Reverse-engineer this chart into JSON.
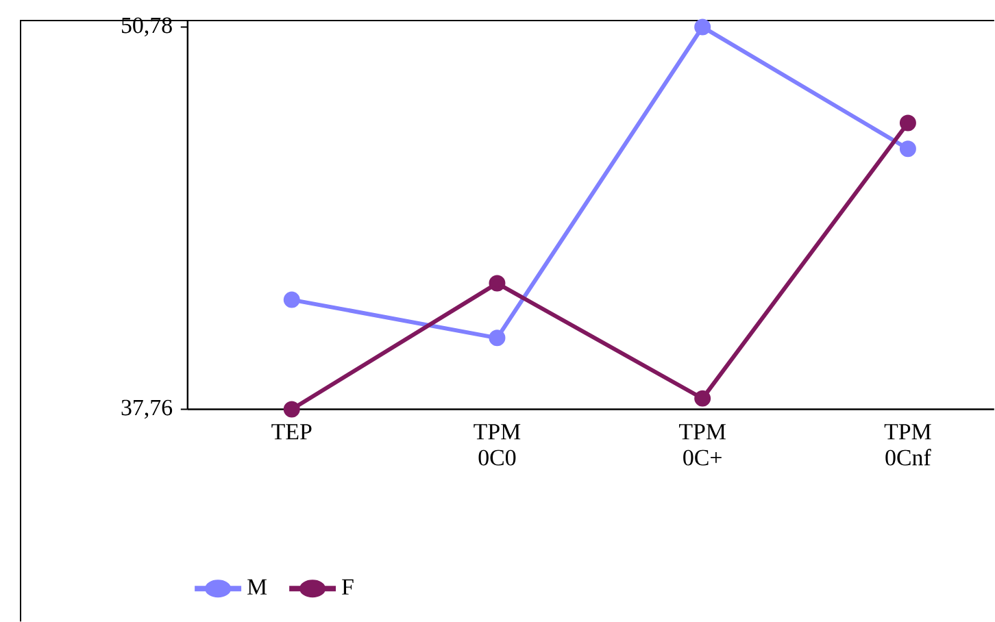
{
  "chart_data": {
    "type": "line",
    "categories": [
      "TEP",
      "TPM 0C0",
      "TPM 0C+",
      "TPM 0Cnf"
    ],
    "series": [
      {
        "name": "M",
        "color": "#8080ff",
        "values": [
          41.49,
          40.19,
          50.78,
          46.63
        ]
      },
      {
        "name": "F",
        "color": "#80185e",
        "values": [
          37.76,
          42.05,
          38.13,
          47.51
        ]
      }
    ],
    "ylim": [
      37.76,
      51.0
    ],
    "yticks": [
      {
        "value": 37.76,
        "label": "37,76"
      },
      {
        "value": 50.78,
        "label": "50,78"
      }
    ],
    "grid": false,
    "legend": "bottom left",
    "marker": "circle",
    "line_style": "solid"
  }
}
